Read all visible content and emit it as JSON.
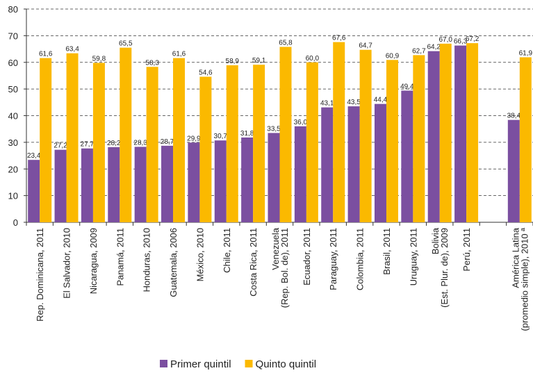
{
  "chart_data": {
    "type": "bar",
    "categories": [
      "Rep. Dominicana, 2011",
      "El Salvador, 2010",
      "Nicaragua, 2009",
      "Panamá, 2011",
      "Honduras, 2010",
      "Guatemala, 2006",
      "México, 2010",
      "Chile, 2011",
      "Costa Rica, 2011",
      "Venezuela\n(Rep. Bol. de), 2011",
      "Ecuador, 2011",
      "Paraguay, 2011",
      "Colombia, 2011",
      "Brasil, 2011",
      "Uruguay, 2011",
      "Bolivia\n(Est. Plur. de), 2009",
      "Perú, 2011",
      null,
      "América Latina\n(promedio simple), 2010 ª"
    ],
    "series": [
      {
        "name": "Primer quintil",
        "color": "#7b4fa0",
        "values": [
          23.4,
          27.2,
          27.7,
          28.2,
          28.3,
          28.7,
          29.9,
          30.7,
          31.8,
          33.5,
          36.0,
          43.1,
          43.5,
          44.4,
          49.4,
          64.2,
          66.3,
          null,
          38.4
        ],
        "value_labels": [
          "23,4",
          "27,2",
          "27,7",
          "28,2",
          "28,3",
          "28,7",
          "29,9",
          "30,7",
          "31,8",
          "33,5",
          "36,0",
          "43,1",
          "43,5",
          "44,4",
          "49,4",
          "64,2",
          "66,3",
          null,
          "38,4"
        ]
      },
      {
        "name": "Quinto quintil",
        "color": "#fbb900",
        "values": [
          61.6,
          63.4,
          59.8,
          65.5,
          58.3,
          61.6,
          54.6,
          58.9,
          59.1,
          65.8,
          60.0,
          67.6,
          64.7,
          60.9,
          62.7,
          67.0,
          67.2,
          null,
          61.9
        ],
        "value_labels": [
          "61,6",
          "63,4",
          "59,8",
          "65,5",
          "58,3",
          "61,6",
          "54,6",
          "58,9",
          "59,1",
          "65,8",
          "60,0",
          "67,6",
          "64,7",
          "60,9",
          "62,7",
          "67,0",
          "67,2",
          null,
          "61,9"
        ]
      }
    ],
    "ylim": [
      0,
      80
    ],
    "yticks": [
      0,
      10,
      20,
      30,
      40,
      50,
      60,
      70,
      80
    ],
    "grid": true,
    "legend": "bottom"
  }
}
